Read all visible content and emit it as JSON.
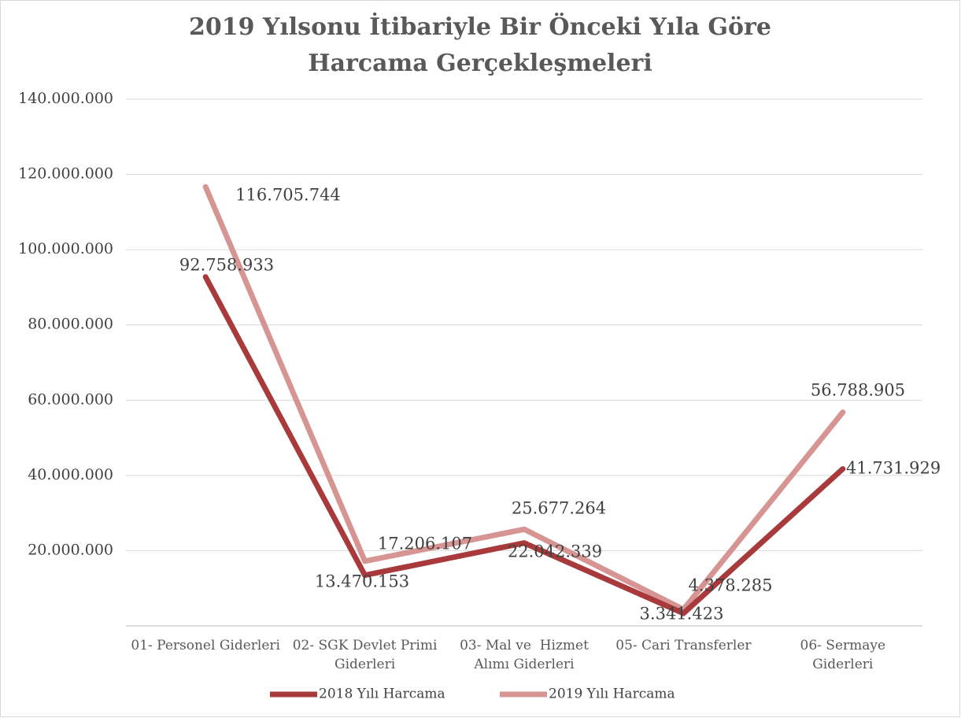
{
  "chart_data": {
    "type": "line",
    "title": "2019 Yılsonu İtibariyle Bir Önceki Yıla Göre Harcama Gerçekleşmeleri",
    "categories": [
      "01- Personel Giderleri",
      "02- SGK Devlet Primi Giderleri",
      "03- Mal ve  Hizmet Alımı Giderleri",
      "05- Cari Transferler",
      "06- Sermaye Giderleri"
    ],
    "series": [
      {
        "name": "2018 Yılı Harcama",
        "color": "#a83a3c",
        "values": [
          92758933,
          13470153,
          22042339,
          3341423,
          41731929
        ],
        "value_labels": [
          "92.758.933",
          "13.470.153",
          "22.042.339",
          "3.341.423",
          "41.731.929"
        ]
      },
      {
        "name": "2019 Yılı Harcama",
        "color": "#d69593",
        "values": [
          116705744,
          17206107,
          25677264,
          4378285,
          56788905
        ],
        "value_labels": [
          "116.705.744",
          "17.206.107",
          "25.677.264",
          "4.378.285",
          "56.788.905"
        ]
      }
    ],
    "ylim": [
      0,
      140000000
    ],
    "yticks": [
      {
        "value": 20000000,
        "label": "20.000.000"
      },
      {
        "value": 40000000,
        "label": "40.000.000"
      },
      {
        "value": 60000000,
        "label": "60.000.000"
      },
      {
        "value": 80000000,
        "label": "80.000.000"
      },
      {
        "value": 100000000,
        "label": "100.000.000"
      },
      {
        "value": 120000000,
        "label": "120.000.000"
      },
      {
        "value": 140000000,
        "label": "140.000.000"
      }
    ],
    "grid": true,
    "legend": "bottom"
  }
}
